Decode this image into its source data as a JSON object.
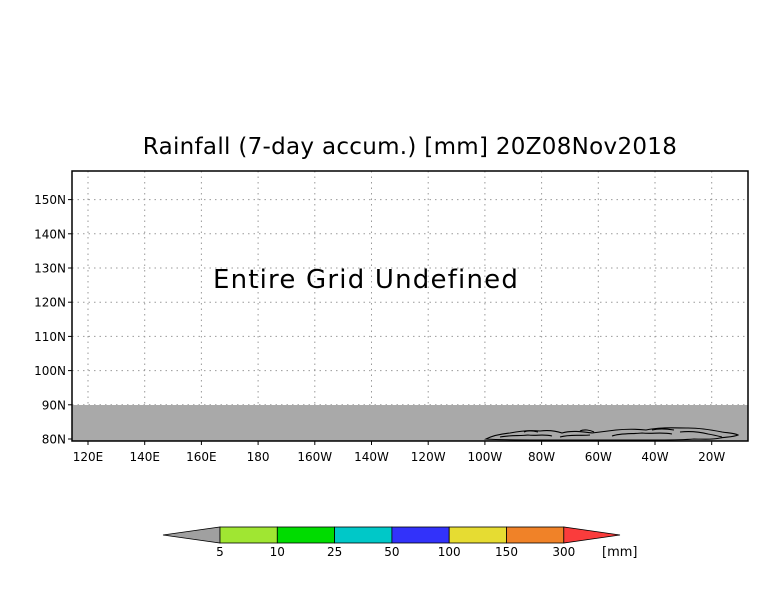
{
  "title": "Rainfall (7-day accum.) [mm] 20Z08Nov2018",
  "message": "Entire Grid Undefined",
  "lat_labels": [
    "150N",
    "140N",
    "130N",
    "120N",
    "110N",
    "100N",
    "90N",
    "80N"
  ],
  "lon_labels": [
    "120E",
    "140E",
    "160E",
    "180",
    "160W",
    "140W",
    "120W",
    "100W",
    "80W",
    "60W",
    "40W",
    "20W"
  ],
  "colorbar": {
    "unit": "[mm]",
    "boundaries": [
      "5",
      "10",
      "25",
      "50",
      "100",
      "150",
      "300"
    ],
    "colors": [
      "#a0a0a0",
      "#a0e632",
      "#00dc00",
      "#00c8c8",
      "#3232fa",
      "#e6dc32",
      "#f08228",
      "#fa3c3c"
    ]
  },
  "colors": {
    "undefined_band": "#a9a9a9",
    "frame": "#000000",
    "grid": "#9a9a9a"
  }
}
